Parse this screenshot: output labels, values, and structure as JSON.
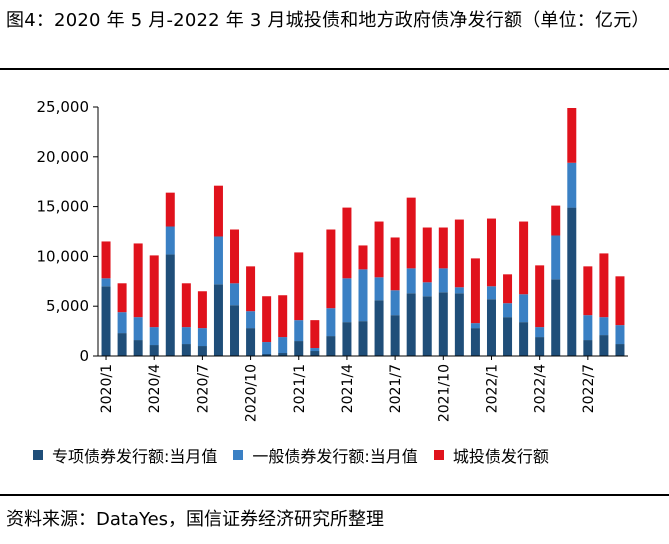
{
  "title": "图4：2020 年 5 月-2022 年 3 月城投债和地方政府债净发行额（单位：亿元）",
  "source": "资料来源：DataYes，国信证券经济研究所整理",
  "colors": {
    "special": "#1f4e79",
    "general": "#3a80c4",
    "urban": "#e0121c",
    "axis": "#000000"
  },
  "chart_data": {
    "type": "bar",
    "stacked": true,
    "categories": [
      "2020/1",
      "2020/2",
      "2020/3",
      "2020/4",
      "2020/5",
      "2020/6",
      "2020/7",
      "2020/8",
      "2020/9",
      "2020/10",
      "2020/11",
      "2020/12",
      "2021/1",
      "2021/2",
      "2021/3",
      "2021/4",
      "2021/5",
      "2021/6",
      "2021/7",
      "2021/8",
      "2021/9",
      "2021/10",
      "2021/11",
      "2021/12",
      "2022/1",
      "2022/2",
      "2022/3",
      "2022/4",
      "2022/5",
      "2022/6",
      "2022/7",
      "2022/8",
      "2022/9"
    ],
    "x_tick_labels": [
      "2020/1",
      "2020/4",
      "2020/7",
      "2020/10",
      "2021/1",
      "2021/4",
      "2021/7",
      "2021/10",
      "2022/1",
      "2022/4",
      "2022/7"
    ],
    "series": [
      {
        "name": "专项债券发行额:当月值",
        "color": "#1f4e79",
        "values": [
          7000,
          2300,
          1600,
          1100,
          10200,
          1200,
          1000,
          7200,
          5100,
          2800,
          200,
          300,
          1500,
          500,
          2000,
          3400,
          3500,
          5600,
          4100,
          6300,
          6000,
          6400,
          6300,
          2800,
          5700,
          3900,
          3400,
          1900,
          7700,
          14900,
          1600,
          2100,
          1200
        ]
      },
      {
        "name": "一般债券发行额:当月值",
        "color": "#3a80c4",
        "values": [
          800,
          2100,
          2300,
          1800,
          2800,
          1700,
          1800,
          4800,
          2200,
          1700,
          1200,
          1600,
          2100,
          300,
          2800,
          4400,
          5200,
          2300,
          2500,
          2500,
          1400,
          2400,
          600,
          500,
          1300,
          1400,
          2800,
          1000,
          4400,
          4500,
          2500,
          1800,
          1900
        ]
      },
      {
        "name": "城投债发行额",
        "color": "#e0121c",
        "values": [
          3700,
          2900,
          7400,
          7200,
          3400,
          4400,
          3700,
          5100,
          5400,
          4500,
          4600,
          4200,
          6800,
          2800,
          7900,
          7100,
          2400,
          5600,
          5300,
          7100,
          5500,
          4100,
          6800,
          6500,
          6800,
          2900,
          7300,
          6200,
          3000,
          5500,
          4900,
          6400,
          4900
        ]
      }
    ],
    "ylim": [
      0,
      25000
    ],
    "yticks": [
      "0",
      "5,000",
      "10,000",
      "15,000",
      "20,000",
      "25,000"
    ],
    "ytick_values": [
      0,
      5000,
      10000,
      15000,
      20000,
      25000
    ],
    "xlabel": "",
    "ylabel": "",
    "legend": "bottom"
  }
}
